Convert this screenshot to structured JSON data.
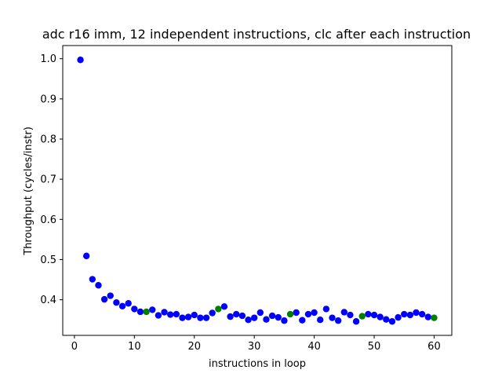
{
  "chart_data": {
    "type": "scatter",
    "title": "adc r16 imm, 12 independent instructions, clc after each instruction",
    "xlabel": "instructions in loop",
    "ylabel": "Throughput (cycles/instr)",
    "xlim": [
      -1.95,
      62.95
    ],
    "ylim": [
      0.3113,
      1.0327
    ],
    "xticks": [
      0,
      10,
      20,
      30,
      40,
      50,
      60
    ],
    "yticks": [
      0.4,
      0.5,
      0.6,
      0.7,
      0.8,
      0.9,
      1.0
    ],
    "grid": false,
    "series": [
      {
        "color": "#0000ff",
        "x": [
          1,
          2,
          3,
          4,
          5,
          6,
          7,
          8,
          9,
          10,
          11,
          13,
          14,
          15,
          16,
          17,
          18,
          19,
          20,
          21,
          22,
          23,
          25,
          26,
          27,
          28,
          29,
          30,
          31,
          32,
          33,
          34,
          35,
          37,
          38,
          39,
          40,
          41,
          42,
          43,
          44,
          45,
          46,
          47,
          49,
          50,
          51,
          52,
          53,
          54,
          55,
          56,
          57,
          58,
          59
        ],
        "y": [
          0.997,
          0.509,
          0.451,
          0.436,
          0.401,
          0.41,
          0.393,
          0.384,
          0.391,
          0.377,
          0.37,
          0.375,
          0.361,
          0.369,
          0.363,
          0.364,
          0.355,
          0.357,
          0.362,
          0.355,
          0.355,
          0.367,
          0.383,
          0.358,
          0.364,
          0.36,
          0.35,
          0.355,
          0.368,
          0.351,
          0.36,
          0.356,
          0.348,
          0.368,
          0.349,
          0.364,
          0.368,
          0.35,
          0.377,
          0.355,
          0.348,
          0.369,
          0.362,
          0.346,
          0.364,
          0.362,
          0.357,
          0.351,
          0.346,
          0.356,
          0.364,
          0.362,
          0.368,
          0.364,
          0.357
        ]
      },
      {
        "color": "#008000",
        "x": [
          12,
          24,
          36,
          48,
          60
        ],
        "y": [
          0.37,
          0.377,
          0.364,
          0.359,
          0.355
        ]
      }
    ]
  }
}
